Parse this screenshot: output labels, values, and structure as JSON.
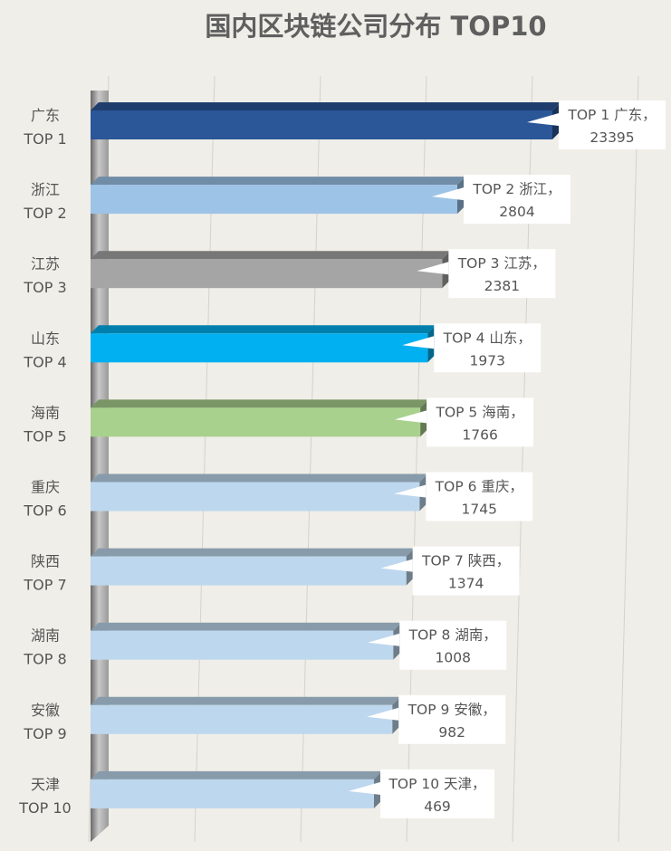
{
  "chart_data": {
    "type": "bar",
    "orientation": "horizontal",
    "title": "国内区块链公司分布 TOP10",
    "categories": [
      "广东",
      "浙江",
      "江苏",
      "山东",
      "海南",
      "重庆",
      "陕西",
      "湖南",
      "安徽",
      "天津"
    ],
    "ranks": [
      "TOP 1",
      "TOP 2",
      "TOP 3",
      "TOP 4",
      "TOP 5",
      "TOP 6",
      "TOP 7",
      "TOP 8",
      "TOP 9",
      "TOP 10"
    ],
    "values": [
      23395,
      2804,
      2381,
      1973,
      1766,
      1745,
      1374,
      1008,
      982,
      469
    ],
    "data_labels": [
      {
        "line1": "TOP 1 广东，",
        "line2": "23395"
      },
      {
        "line1": "TOP 2 浙江，",
        "line2": "2804"
      },
      {
        "line1": "TOP 3 江苏，",
        "line2": "2381"
      },
      {
        "line1": "TOP 4 山东，",
        "line2": "1973"
      },
      {
        "line1": "TOP 5 海南，",
        "line2": "1766"
      },
      {
        "line1": "TOP 6 重庆，",
        "line2": "1745"
      },
      {
        "line1": "TOP 7 陕西，",
        "line2": "1374"
      },
      {
        "line1": "TOP 8 湖南，",
        "line2": "1008"
      },
      {
        "line1": "TOP 9 安徽，",
        "line2": "982"
      },
      {
        "line1": "TOP 10 天津，",
        "line2": "469"
      }
    ],
    "bar_colors": [
      "#2b5698",
      "#9dc3e6",
      "#a5a5a5",
      "#00b0f0",
      "#a9d18e",
      "#bdd7ee",
      "#bdd7ee",
      "#bdd7ee",
      "#bdd7ee",
      "#bdd7ee"
    ],
    "gridlines": true,
    "legend": "none"
  }
}
